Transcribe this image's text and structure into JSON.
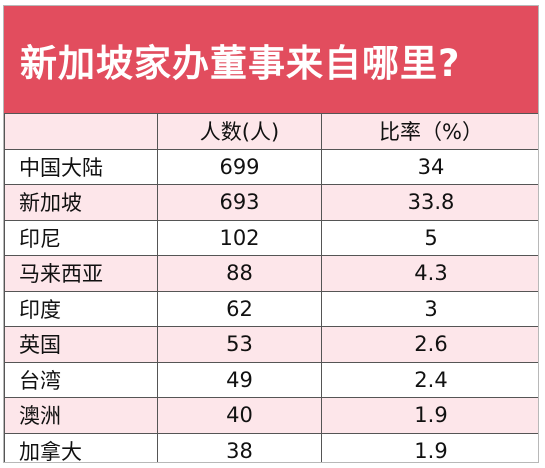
{
  "title": "新加坡家办董事来自哪里?",
  "colors": {
    "title_bg": "#e24d5e",
    "title_text": "#ffffff",
    "row_pink": "#fde6ea",
    "row_white": "#ffffff",
    "border": "#555555"
  },
  "chart_data": {
    "type": "table",
    "title": "新加坡家办董事来自哪里?",
    "columns": [
      "",
      "人数(人)",
      "比率（%）"
    ],
    "rows": [
      {
        "name": "中国大陆",
        "count": "699",
        "ratio": "34"
      },
      {
        "name": "新加坡",
        "count": "693",
        "ratio": "33.8"
      },
      {
        "name": "印尼",
        "count": "102",
        "ratio": "5"
      },
      {
        "name": "马来西亚",
        "count": "88",
        "ratio": "4.3"
      },
      {
        "name": "印度",
        "count": "62",
        "ratio": "3"
      },
      {
        "name": "英国",
        "count": "53",
        "ratio": "2.6"
      },
      {
        "name": "台湾",
        "count": "49",
        "ratio": "2.4"
      },
      {
        "name": "澳洲",
        "count": "40",
        "ratio": "1.9"
      },
      {
        "name": "加拿大",
        "count": "38",
        "ratio": "1.9"
      }
    ]
  }
}
